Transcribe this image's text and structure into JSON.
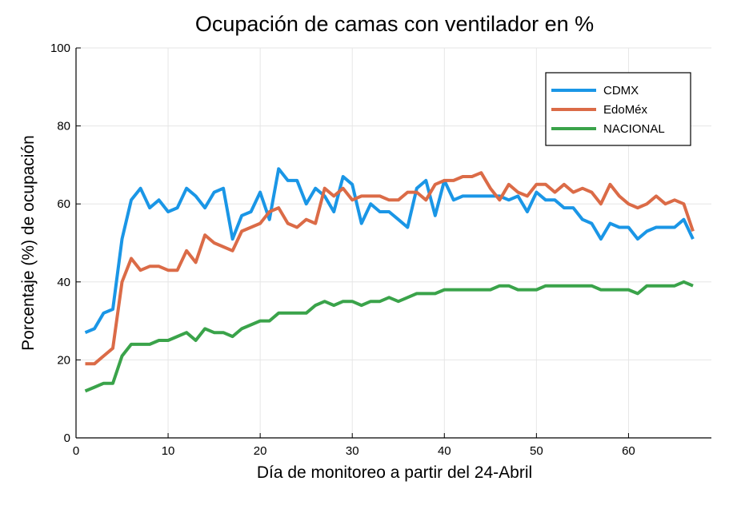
{
  "chart_data": {
    "type": "line",
    "title": "Ocupación de camas con ventilador en %",
    "xlabel": "Día de monitoreo a partir del 24-Abril",
    "ylabel": "Porcentaje (%) de ocupación",
    "xlim": [
      0,
      69
    ],
    "ylim": [
      0,
      100
    ],
    "xticks": [
      0,
      10,
      20,
      30,
      40,
      50,
      60
    ],
    "yticks": [
      0,
      20,
      40,
      60,
      80,
      100
    ],
    "grid": true,
    "legend_position": "top-right",
    "x": [
      1,
      2,
      3,
      4,
      5,
      6,
      7,
      8,
      9,
      10,
      11,
      12,
      13,
      14,
      15,
      16,
      17,
      18,
      19,
      20,
      21,
      22,
      23,
      24,
      25,
      26,
      27,
      28,
      29,
      30,
      31,
      32,
      33,
      34,
      35,
      36,
      37,
      38,
      39,
      40,
      41,
      42,
      43,
      44,
      45,
      46,
      47,
      48,
      49,
      50,
      51,
      52,
      53,
      54,
      55,
      56,
      57,
      58,
      59,
      60,
      61,
      62,
      63,
      64,
      65,
      66,
      67
    ],
    "series": [
      {
        "name": "CDMX",
        "color": "#1a96e6",
        "values": [
          27,
          28,
          32,
          33,
          51,
          61,
          64,
          59,
          61,
          58,
          59,
          64,
          62,
          59,
          63,
          64,
          51,
          57,
          58,
          63,
          56,
          69,
          66,
          66,
          60,
          64,
          62,
          58,
          67,
          65,
          55,
          60,
          58,
          58,
          56,
          54,
          64,
          66,
          57,
          66,
          61,
          62,
          62,
          62,
          62,
          62,
          61,
          62,
          58,
          63,
          61,
          61,
          59,
          59,
          56,
          55,
          51,
          55,
          54,
          54,
          51,
          53,
          54,
          54,
          54,
          56,
          51
        ]
      },
      {
        "name": "EdoMéx",
        "color": "#db6b47",
        "values": [
          19,
          19,
          21,
          23,
          40,
          46,
          43,
          44,
          44,
          43,
          43,
          48,
          45,
          52,
          50,
          49,
          48,
          53,
          54,
          55,
          58,
          59,
          55,
          54,
          56,
          55,
          64,
          62,
          64,
          61,
          62,
          62,
          62,
          61,
          61,
          63,
          63,
          61,
          65,
          66,
          66,
          67,
          67,
          68,
          64,
          61,
          65,
          63,
          62,
          65,
          65,
          63,
          65,
          63,
          64,
          63,
          60,
          65,
          62,
          60,
          59,
          60,
          62,
          60,
          61,
          60,
          53
        ]
      },
      {
        "name": "NACIONAL",
        "color": "#3aa34a",
        "values": [
          12,
          13,
          14,
          14,
          21,
          24,
          24,
          24,
          25,
          25,
          26,
          27,
          25,
          28,
          27,
          27,
          26,
          28,
          29,
          30,
          30,
          32,
          32,
          32,
          32,
          34,
          35,
          34,
          35,
          35,
          34,
          35,
          35,
          36,
          35,
          36,
          37,
          37,
          37,
          38,
          38,
          38,
          38,
          38,
          38,
          39,
          39,
          38,
          38,
          38,
          39,
          39,
          39,
          39,
          39,
          39,
          38,
          38,
          38,
          38,
          37,
          39,
          39,
          39,
          39,
          40,
          39
        ]
      }
    ]
  }
}
